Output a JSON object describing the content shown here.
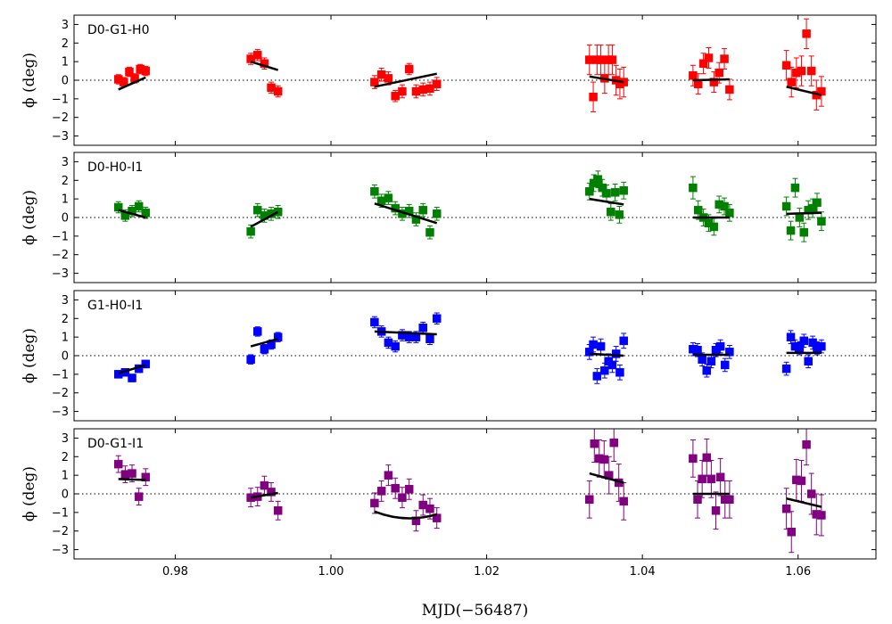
{
  "chart_data": {
    "type": "scatter",
    "xlabel": "MJD(−56487)",
    "ylabel": "ϕ (deg)",
    "xlim": [
      0.967,
      1.07
    ],
    "ylim": [
      -3.5,
      3.5
    ],
    "xticks": [
      0.98,
      1.0,
      1.02,
      1.04,
      1.06
    ],
    "xtick_labels": [
      "0.98",
      "1.00",
      "1.02",
      "1.04",
      "1.06"
    ],
    "yticks": [
      -3,
      -2,
      -1,
      0,
      1,
      2,
      3
    ],
    "ytick_labels": [
      "−3",
      "−2",
      "−1",
      "0",
      "1",
      "2",
      "3"
    ],
    "reference_line": 0,
    "groups": [
      {
        "x0": 0.9727,
        "x1": 0.9762
      },
      {
        "x0": 0.9897,
        "x1": 0.9932
      },
      {
        "x0": 1.0056,
        "x1": 1.0136
      },
      {
        "x0": 1.0332,
        "x1": 1.0376
      },
      {
        "x0": 1.0465,
        "x1": 1.0512
      },
      {
        "x0": 1.0585,
        "x1": 1.063
      }
    ],
    "panels": [
      {
        "name": "D0-G1-H0",
        "color": "#ff0000",
        "groups": [
          {
            "y": [
              0.05,
              -0.1,
              0.45,
              0.1,
              0.6,
              0.5
            ],
            "err": [
              0.25,
              0.25,
              0.25,
              0.25,
              0.25,
              0.25
            ],
            "fit": [
              -0.5,
              0.15
            ]
          },
          {
            "y": [
              1.15,
              1.35,
              0.9,
              -0.4,
              -0.6
            ],
            "err": [
              0.3,
              0.3,
              0.3,
              0.3,
              0.3
            ],
            "fit": [
              1.0,
              0.55
            ]
          },
          {
            "y": [
              -0.1,
              0.3,
              0.1,
              -0.85,
              -0.6,
              0.6,
              -0.6,
              -0.5,
              -0.45,
              -0.2
            ],
            "err": [
              0.35,
              0.35,
              0.35,
              0.3,
              0.35,
              0.3,
              0.35,
              0.35,
              0.35,
              0.35
            ],
            "fit": [
              -0.35,
              0.35
            ]
          },
          {
            "y": [
              1.1,
              -0.9,
              1.1,
              1.1,
              0.1,
              1.1,
              1.1,
              0.0,
              -0.2,
              -0.1
            ],
            "err": [
              0.8,
              0.8,
              0.8,
              0.8,
              0.8,
              0.8,
              0.8,
              0.8,
              0.8,
              0.8
            ],
            "fit": [
              0.2,
              -0.1
            ]
          },
          {
            "y": [
              0.25,
              -0.2,
              0.9,
              1.2,
              -0.1,
              0.4,
              1.15,
              -0.5
            ],
            "err": [
              0.55,
              0.55,
              0.55,
              0.55,
              0.55,
              0.55,
              0.55,
              0.55
            ],
            "fit": [
              0.0,
              0.05
            ]
          },
          {
            "y": [
              0.8,
              -0.1,
              0.4,
              0.5,
              2.5,
              0.5,
              -0.8,
              -0.6
            ],
            "err": [
              0.8,
              0.8,
              0.8,
              0.8,
              0.8,
              0.8,
              0.8,
              0.8
            ],
            "fit": [
              -0.35,
              -0.8
            ]
          }
        ]
      },
      {
        "name": "D0-H0-I1",
        "color": "#008000",
        "groups": [
          {
            "y": [
              0.55,
              0.1,
              0.35,
              0.6,
              0.25
            ],
            "err": [
              0.3,
              0.3,
              0.3,
              0.3,
              0.3
            ],
            "fit": [
              0.4,
              0.0
            ]
          },
          {
            "y": [
              -0.75,
              0.4,
              0.1,
              0.2,
              0.3
            ],
            "err": [
              0.35,
              0.35,
              0.35,
              0.35,
              0.35
            ],
            "fit": [
              -0.5,
              0.3
            ]
          },
          {
            "y": [
              1.4,
              0.9,
              1.05,
              0.5,
              0.2,
              0.35,
              -0.1,
              0.4,
              -0.8,
              0.2
            ],
            "err": [
              0.35,
              0.35,
              0.35,
              0.35,
              0.35,
              0.35,
              0.35,
              0.35,
              0.35,
              0.35
            ],
            "fit": [
              0.75,
              -0.3
            ]
          },
          {
            "y": [
              1.4,
              1.85,
              2.05,
              1.6,
              1.3,
              0.3,
              1.35,
              0.15,
              1.45
            ],
            "err": [
              0.45,
              0.45,
              0.45,
              0.45,
              0.45,
              0.45,
              0.45,
              0.45,
              0.45
            ],
            "fit": [
              1.0,
              0.7
            ]
          },
          {
            "y": [
              1.6,
              0.4,
              0.0,
              -0.3,
              -0.5,
              0.7,
              0.6,
              0.25
            ],
            "err": [
              0.6,
              0.5,
              0.45,
              0.45,
              0.45,
              0.45,
              0.45,
              0.45
            ],
            "fit": [
              0.0,
              0.0
            ]
          },
          {
            "y": [
              0.6,
              -0.7,
              1.6,
              0.0,
              -0.8,
              0.4,
              0.5,
              0.8,
              -0.2
            ],
            "err": [
              0.5,
              0.5,
              0.5,
              0.5,
              0.5,
              0.5,
              0.5,
              0.5,
              0.5
            ],
            "fit": [
              0.2,
              0.25
            ]
          }
        ]
      },
      {
        "name": "G1-H0-I1",
        "color": "#0000ff",
        "groups": [
          {
            "y": [
              -1.0,
              -0.9,
              -1.2,
              -0.7,
              -0.45
            ],
            "err": [
              0.2,
              0.2,
              0.2,
              0.2,
              0.2
            ],
            "fit": [
              -0.95,
              -0.5
            ]
          },
          {
            "y": [
              -0.2,
              1.3,
              0.35,
              0.6,
              1.0
            ],
            "err": [
              0.25,
              0.25,
              0.25,
              0.25,
              0.25
            ],
            "fit": [
              0.5,
              0.9
            ]
          },
          {
            "y": [
              1.8,
              1.3,
              0.7,
              0.5,
              1.1,
              1.0,
              1.0,
              1.5,
              0.9,
              2.0
            ],
            "err": [
              0.3,
              0.3,
              0.3,
              0.3,
              0.3,
              0.3,
              0.3,
              0.3,
              0.3,
              0.3
            ],
            "fit": [
              1.3,
              1.15
            ]
          },
          {
            "y": [
              0.2,
              0.6,
              -1.1,
              0.5,
              -0.8,
              -0.3,
              -0.5,
              0.1,
              -0.9,
              0.8
            ],
            "err": [
              0.4,
              0.4,
              0.4,
              0.4,
              0.4,
              0.4,
              0.4,
              0.4,
              0.4,
              0.4
            ],
            "fit": [
              0.1,
              0.0
            ]
          },
          {
            "y": [
              0.35,
              0.3,
              -0.2,
              -0.8,
              -0.3,
              0.3,
              0.5,
              -0.5,
              0.2
            ],
            "err": [
              0.35,
              0.35,
              0.35,
              0.35,
              0.35,
              0.35,
              0.35,
              0.35,
              0.35
            ],
            "fit": [
              0.05,
              0.05
            ]
          },
          {
            "y": [
              -0.7,
              1.0,
              0.5,
              0.4,
              0.8,
              -0.3,
              0.7,
              0.4,
              0.5
            ],
            "err": [
              0.35,
              0.35,
              0.35,
              0.35,
              0.35,
              0.35,
              0.35,
              0.35,
              0.35
            ],
            "fit": [
              0.15,
              0.15
            ]
          }
        ]
      },
      {
        "name": "D0-G1-I1",
        "color": "#800080",
        "groups": [
          {
            "y": [
              1.6,
              1.05,
              1.1,
              -0.15,
              0.9
            ],
            "err": [
              0.45,
              0.45,
              0.45,
              0.45,
              0.45
            ],
            "fit": [
              0.8,
              0.75
            ]
          },
          {
            "y": [
              -0.2,
              -0.15,
              0.45,
              0.1,
              -0.9
            ],
            "err": [
              0.5,
              0.5,
              0.5,
              0.5,
              0.5
            ],
            "fit": [
              -0.2,
              0.05
            ]
          },
          {
            "y": [
              -0.5,
              0.15,
              1.0,
              0.3,
              -0.2,
              0.25,
              -1.45,
              -0.6,
              -0.8,
              -1.3
            ],
            "err": [
              0.55,
              0.55,
              0.55,
              0.55,
              0.55,
              0.55,
              0.55,
              0.55,
              0.55,
              0.55
            ],
            "fit": [
              -0.95,
              -1.1
            ],
            "curve": true
          },
          {
            "y": [
              -0.3,
              2.7,
              1.9,
              1.85,
              1.0,
              2.75,
              0.6,
              -0.4
            ],
            "err": [
              1.0,
              1.0,
              1.0,
              1.0,
              1.0,
              1.0,
              1.0,
              1.0
            ],
            "fit": [
              1.1,
              0.6
            ]
          },
          {
            "y": [
              1.9,
              -0.3,
              0.8,
              1.95,
              0.8,
              -0.9,
              0.9,
              -0.3,
              -0.3
            ],
            "err": [
              1.0,
              1.0,
              1.0,
              1.0,
              1.0,
              1.0,
              1.0,
              1.0,
              1.0
            ],
            "fit": [
              0.0,
              0.0
            ]
          },
          {
            "y": [
              -0.8,
              -2.05,
              0.75,
              0.7,
              2.65,
              0.0,
              -1.1,
              -1.15
            ],
            "err": [
              1.1,
              1.1,
              1.1,
              1.1,
              1.1,
              1.1,
              1.1,
              1.1
            ],
            "fit": [
              -0.25,
              -0.7
            ]
          }
        ]
      }
    ]
  }
}
